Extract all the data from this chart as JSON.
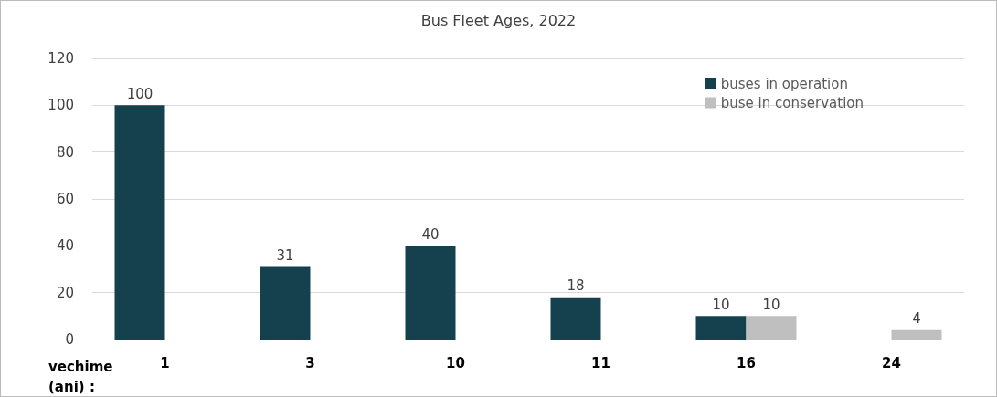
{
  "chart_data": {
    "type": "bar",
    "title": "Bus Fleet Ages, 2022",
    "xlabel": "vechime (ani) :",
    "categories": [
      "1",
      "3",
      "10",
      "11",
      "16",
      "24"
    ],
    "series": [
      {
        "name": "buses in operation",
        "color": "#15404d",
        "values": [
          100,
          31,
          40,
          18,
          10,
          null
        ]
      },
      {
        "name": "buse in conservation",
        "color": "#bfbfbf",
        "values": [
          null,
          null,
          null,
          null,
          10,
          4
        ]
      }
    ],
    "ylim": [
      0,
      120
    ],
    "yticks": [
      0,
      20,
      40,
      60,
      80,
      100,
      120
    ],
    "grid": "y",
    "legend": "top right",
    "data_labels": true
  }
}
